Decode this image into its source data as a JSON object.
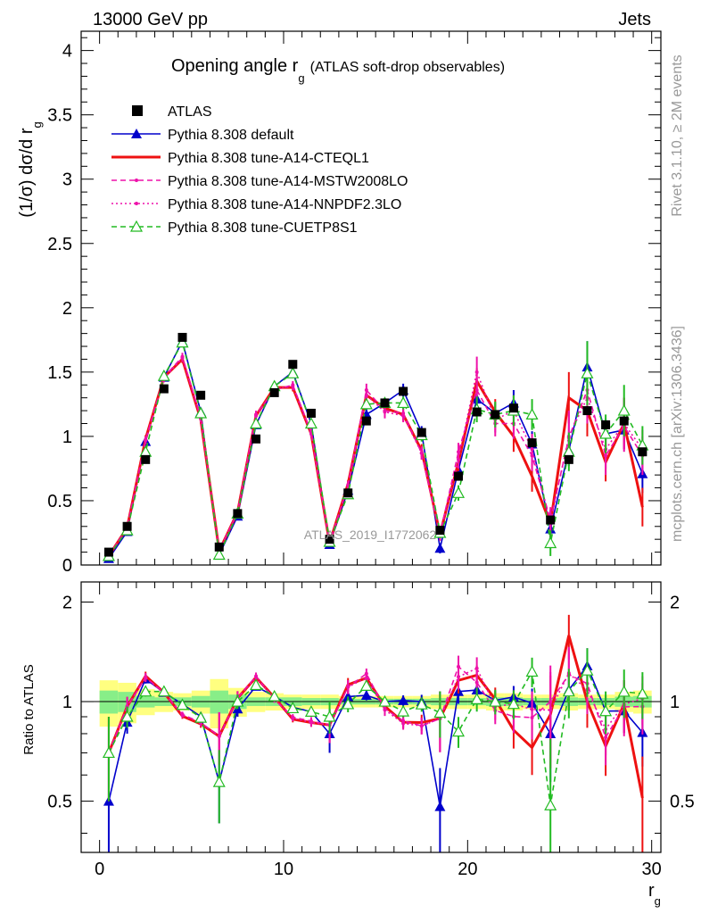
{
  "header": {
    "left": "13000 GeV pp",
    "right": "Jets"
  },
  "side_labels": {
    "rivet": "Rivet 3.1.10, ≥ 2M events",
    "mcplots": "mcplots.cern.ch [arXiv:1306.3436]"
  },
  "watermark": "ATLAS_2019_I1772062",
  "chart_data": {
    "type": "line",
    "title": "Opening angle r",
    "title_sub": "g",
    "title_suffix": "(ATLAS soft-drop observables)",
    "xlabel": "r",
    "xlabel_sub": "g",
    "ylabel": "(1/σ) dσ/d r",
    "ylabel_sub": "g",
    "ratio_ylabel": "Ratio to ATLAS",
    "xlim": [
      -1,
      30.5
    ],
    "ylim": [
      0,
      4.15
    ],
    "ratio_ylim": [
      0.35,
      2.3
    ],
    "xticks": [
      "0",
      "10",
      "20",
      "30"
    ],
    "yticks": [
      "0",
      "0.5",
      "1",
      "1.5",
      "2",
      "2.5",
      "3",
      "3.5",
      "4"
    ],
    "ratio_yticks": [
      "0.5",
      "1",
      "2"
    ],
    "x": [
      0.5,
      1.5,
      2.5,
      3.5,
      4.5,
      5.5,
      6.5,
      7.5,
      8.5,
      9.5,
      10.5,
      11.5,
      12.5,
      13.5,
      14.5,
      15.5,
      16.5,
      17.5,
      18.5,
      19.5,
      20.5,
      21.5,
      22.5,
      23.5,
      24.5,
      25.5,
      26.5,
      27.5,
      28.5,
      29.5
    ],
    "data": {
      "name": "ATLAS",
      "values": [
        0.1,
        0.3,
        0.82,
        1.37,
        1.77,
        1.32,
        0.14,
        0.4,
        0.98,
        1.34,
        1.56,
        1.18,
        0.2,
        0.56,
        1.12,
        1.26,
        1.35,
        1.03,
        0.27,
        0.69,
        1.19,
        1.17,
        1.22,
        0.95,
        0.35,
        0.82,
        1.2,
        1.09,
        1.12,
        0.88
      ],
      "band_outer": [
        0.16,
        0.14,
        0.09,
        0.07,
        0.06,
        0.08,
        0.17,
        0.1,
        0.07,
        0.06,
        0.05,
        0.05,
        0.05,
        0.04,
        0.04,
        0.04,
        0.04,
        0.04,
        0.05,
        0.05,
        0.05,
        0.06,
        0.06,
        0.05,
        0.05,
        0.06,
        0.05,
        0.05,
        0.07,
        0.08
      ],
      "band_inner": [
        0.08,
        0.07,
        0.04,
        0.03,
        0.03,
        0.04,
        0.08,
        0.05,
        0.03,
        0.03,
        0.03,
        0.025,
        0.025,
        0.02,
        0.02,
        0.02,
        0.02,
        0.02,
        0.025,
        0.025,
        0.025,
        0.03,
        0.03,
        0.025,
        0.025,
        0.03,
        0.025,
        0.025,
        0.035,
        0.04
      ]
    },
    "series": [
      {
        "name": "Pythia 8.308 default",
        "color": "#0000cc",
        "dash": "",
        "marker": "triangle",
        "values": [
          0.05,
          0.26,
          0.96,
          1.46,
          1.74,
          1.19,
          0.08,
          0.38,
          1.09,
          1.39,
          1.5,
          1.1,
          0.16,
          0.58,
          1.17,
          1.26,
          1.36,
          1.03,
          0.13,
          0.74,
          1.29,
          1.18,
          1.26,
          0.94,
          0.28,
          0.89,
          1.54,
          1.02,
          1.05,
          0.71
        ],
        "err": [
          0.02,
          0.02,
          0.03,
          0.03,
          0.03,
          0.03,
          0.02,
          0.02,
          0.03,
          0.03,
          0.03,
          0.03,
          0.02,
          0.03,
          0.04,
          0.04,
          0.05,
          0.05,
          0.04,
          0.06,
          0.08,
          0.08,
          0.1,
          0.1,
          0.08,
          0.12,
          0.2,
          0.12,
          0.15,
          0.15
        ]
      },
      {
        "name": "Pythia 8.308 tune-A14-CTEQL1",
        "color": "#ee1111",
        "dash": "",
        "marker": "none",
        "values": [
          0.07,
          0.29,
          0.98,
          1.46,
          1.6,
          1.13,
          0.11,
          0.41,
          1.16,
          1.38,
          1.38,
          1.02,
          0.17,
          0.63,
          1.32,
          1.22,
          1.17,
          0.89,
          0.24,
          0.8,
          1.43,
          1.19,
          1.0,
          0.69,
          0.32,
          1.3,
          1.2,
          0.8,
          1.1,
          0.45
        ],
        "err": [
          0.02,
          0.02,
          0.03,
          0.03,
          0.03,
          0.03,
          0.02,
          0.02,
          0.03,
          0.03,
          0.03,
          0.03,
          0.02,
          0.03,
          0.05,
          0.05,
          0.05,
          0.05,
          0.05,
          0.07,
          0.1,
          0.1,
          0.12,
          0.12,
          0.1,
          0.2,
          0.2,
          0.15,
          0.2,
          0.15
        ]
      },
      {
        "name": "Pythia 8.308 tune-A14-MSTW2008LO",
        "color": "#ee11aa",
        "dash": "6,4",
        "marker": "dot",
        "values": [
          0.07,
          0.29,
          0.97,
          1.46,
          1.62,
          1.14,
          0.11,
          0.41,
          1.17,
          1.36,
          1.4,
          1.03,
          0.17,
          0.62,
          1.36,
          1.2,
          1.18,
          0.87,
          0.24,
          0.88,
          1.36,
          1.1,
          1.1,
          0.85,
          0.35,
          0.99,
          1.36,
          0.85,
          1.08,
          0.85
        ],
        "err": [
          0.02,
          0.02,
          0.03,
          0.03,
          0.03,
          0.03,
          0.02,
          0.02,
          0.03,
          0.03,
          0.03,
          0.03,
          0.02,
          0.03,
          0.05,
          0.05,
          0.05,
          0.05,
          0.05,
          0.07,
          0.1,
          0.1,
          0.12,
          0.12,
          0.1,
          0.2,
          0.2,
          0.15,
          0.2,
          0.15
        ]
      },
      {
        "name": "Pythia 8.308 tune-A14-NNPDF2.3LO",
        "color": "#ee11aa",
        "dash": "2,3",
        "marker": "dot",
        "values": [
          0.07,
          0.29,
          0.97,
          1.45,
          1.61,
          1.14,
          0.11,
          0.41,
          1.16,
          1.37,
          1.39,
          1.02,
          0.17,
          0.62,
          1.32,
          1.19,
          1.16,
          0.87,
          0.24,
          0.82,
          1.5,
          1.13,
          1.2,
          0.9,
          0.33,
          1.0,
          1.3,
          0.9,
          1.1,
          0.9
        ],
        "err": [
          0.02,
          0.02,
          0.03,
          0.03,
          0.03,
          0.03,
          0.02,
          0.02,
          0.03,
          0.03,
          0.03,
          0.03,
          0.02,
          0.03,
          0.05,
          0.05,
          0.05,
          0.05,
          0.05,
          0.07,
          0.12,
          0.1,
          0.12,
          0.12,
          0.1,
          0.2,
          0.2,
          0.15,
          0.2,
          0.15
        ]
      },
      {
        "name": "Pythia 8.308 tune-CUETP8S1",
        "color": "#22bb22",
        "dash": "6,4",
        "marker": "open-triangle",
        "values": [
          0.07,
          0.27,
          0.88,
          1.47,
          1.73,
          1.18,
          0.08,
          0.4,
          1.1,
          1.39,
          1.49,
          1.1,
          0.18,
          0.55,
          1.25,
          1.26,
          1.26,
          1.01,
          0.25,
          0.56,
          1.21,
          1.17,
          1.2,
          1.17,
          0.17,
          0.88,
          1.49,
          1.02,
          1.2,
          0.93
        ],
        "err": [
          0.02,
          0.02,
          0.03,
          0.03,
          0.03,
          0.03,
          0.02,
          0.02,
          0.03,
          0.03,
          0.03,
          0.03,
          0.02,
          0.03,
          0.04,
          0.04,
          0.05,
          0.05,
          0.04,
          0.06,
          0.1,
          0.1,
          0.12,
          0.12,
          0.1,
          0.15,
          0.25,
          0.15,
          0.2,
          0.15
        ]
      }
    ]
  }
}
